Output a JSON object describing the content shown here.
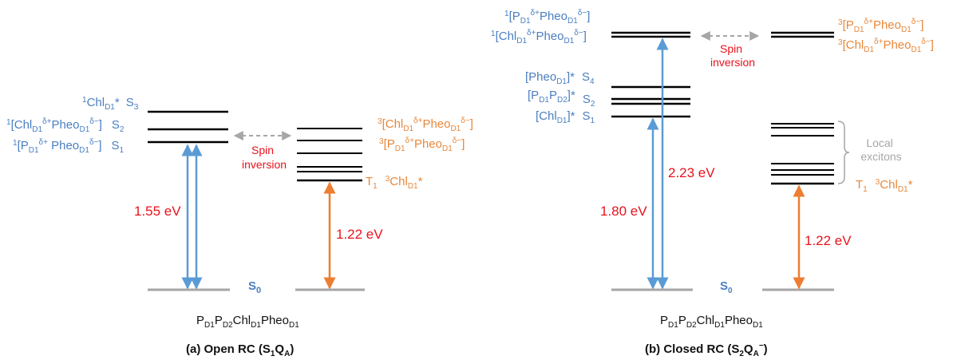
{
  "colors": {
    "singlet": "#4a7fc1",
    "triplet": "#e8873a",
    "energy": "#e8121c",
    "ground": "#a6a6a6",
    "level": "#000000",
    "arrow_blue": "#5b9bd5",
    "arrow_orange": "#ed7d31"
  },
  "panel_a": {
    "title_main": "(a) Open RC (S",
    "title_s_sub": "1",
    "title_q": "Q",
    "title_q_sub": "A",
    "title_close": ")",
    "molecule": {
      "p": "P",
      "p_sub1": "D1",
      "p_mid": "P",
      "p_sub2": "D2",
      "chl": "Chl",
      "chl_sub": "D1",
      "pheo": "Pheo",
      "pheo_sub": "D1"
    },
    "ground_label": {
      "s": "S",
      "sub": "0"
    },
    "singlets": [
      {
        "sup": "1",
        "name": "Chl",
        "sub": "D1",
        "tail": "*",
        "state": "S",
        "state_sub": "3"
      },
      {
        "sup": "1",
        "bracket": "[Chl",
        "sub1": "D1",
        "sup1": "δ+",
        "mid": "Pheo",
        "sub2": "D1",
        "sup2": "δ−",
        "end": "]",
        "state": "S",
        "state_sub": "2"
      },
      {
        "sup": "1",
        "bracket": "[P",
        "sub1": "D1",
        "sup1": "δ+",
        "mid": " Pheo",
        "sub2": "D1",
        "sup2": "δ−",
        "end": "]",
        "state": "S",
        "state_sub": "1"
      }
    ],
    "triplets": [
      {
        "sup": "3",
        "bracket": "[Chl",
        "sub1": "D1",
        "sup1": "δ+",
        "mid": "Pheo",
        "sub2": "D1",
        "sup2": "δ−",
        "end": "]"
      },
      {
        "sup": "3",
        "bracket": "[P",
        "sub1": "D1",
        "sup1": "δ+",
        "mid": "Pheo",
        "sub2": "D1",
        "sup2": "δ−",
        "end": "]"
      },
      {
        "state": "T",
        "state_sub": "1",
        "sup": "3",
        "name": "Chl",
        "sub": "D1",
        "tail": "*"
      }
    ],
    "energy_singlet": "1.55 eV",
    "energy_triplet": "1.22 eV",
    "spin_line1": "Spin",
    "spin_line2": "inversion"
  },
  "panel_b": {
    "title_main": "(b) Closed RC (S",
    "title_s_sub": "2",
    "title_q": "Q",
    "title_q_sub": "A",
    "title_q_sup": "−",
    "title_close": ")",
    "molecule": {
      "p": "P",
      "p_sub1": "D1",
      "p_mid": "P",
      "p_sub2": "D2",
      "chl": "Chl",
      "chl_sub": "D1",
      "pheo": "Pheo",
      "pheo_sub": "D1"
    },
    "ground_label": {
      "s": "S",
      "sub": "0"
    },
    "top_singlets": [
      {
        "sup": "1",
        "bracket": "[P",
        "sub1": "D1",
        "sup1": "δ+",
        "mid": "Pheo",
        "sub2": "D1",
        "sup2": "δ−",
        "end": "]"
      },
      {
        "sup": "1",
        "bracket": "[Chl",
        "sub1": "D1",
        "sup1": "δ+",
        "mid": "Pheo",
        "sub2": "D1",
        "sup2": "δ−",
        "end": "]"
      }
    ],
    "local_singlets": [
      {
        "bracket": "[Pheo",
        "sub": "D1",
        "end": "]*",
        "state": "S",
        "state_sub": "4"
      },
      {
        "bracket": "[P",
        "sub1": "D1",
        "mid": "P",
        "sub2": "D2",
        "end": "]*",
        "state": "S",
        "state_sub": "2"
      },
      {
        "bracket": "[Chl",
        "sub": "D1",
        "end": "]*",
        "state": "S",
        "state_sub": "1"
      }
    ],
    "top_triplets": [
      {
        "sup": "3",
        "bracket": "[P",
        "sub1": "D1",
        "sup1": "δ+",
        "mid": "Pheo",
        "sub2": "D1",
        "sup2": "δ−",
        "end": "]"
      },
      {
        "sup": "3",
        "bracket": "[Chl",
        "sub1": "D1",
        "sup1": "δ+",
        "mid": "Pheo",
        "sub2": "D1",
        "sup2": "δ−",
        "end": "]"
      }
    ],
    "t1_label": {
      "state": "T",
      "state_sub": "1",
      "sup": "3",
      "name": "Chl",
      "sub": "D1",
      "tail": "*"
    },
    "local_excitons_line1": "Local",
    "local_excitons_line2": "excitons",
    "energy_singlet_high": "2.23 eV",
    "energy_singlet_low": "1.80 eV",
    "energy_triplet": "1.22 eV",
    "spin_line1": "Spin",
    "spin_line2": "inversion"
  }
}
